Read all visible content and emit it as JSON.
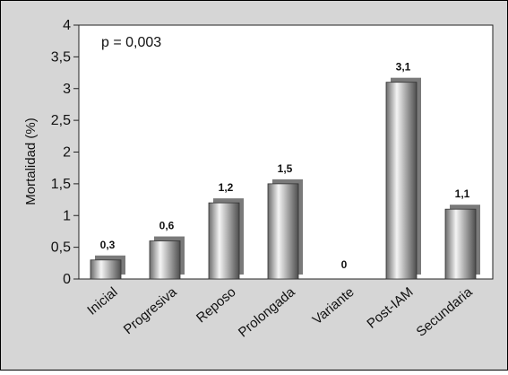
{
  "chart_data": {
    "type": "bar",
    "categories": [
      "Inicial",
      "Progresiva",
      "Reposo",
      "Prolongada",
      "Variante",
      "Post-IAM",
      "Secundaria"
    ],
    "values": [
      0.3,
      0.6,
      1.2,
      1.5,
      0,
      3.1,
      1.1
    ],
    "value_labels": [
      "0,3",
      "0,6",
      "1,2",
      "1,5",
      "0",
      "3,1",
      "1,1"
    ],
    "ylabel": "Mortalidad (%)",
    "xlabel": "",
    "ylim": [
      0,
      4
    ],
    "yticks": [
      0,
      0.5,
      1,
      1.5,
      2,
      2.5,
      3,
      3.5,
      4
    ],
    "ytick_labels": [
      "0",
      "0,5",
      "1",
      "1,5",
      "2",
      "2,5",
      "3",
      "3,5",
      "4"
    ],
    "annotation": "p = 0,003",
    "grid": false,
    "legend": "none",
    "colors": {
      "frame_bg": "#d6d6d6",
      "plot_bg": "#ffffff",
      "bar_shadow": "#7a7a7a",
      "bar_light": "#f2f2f2",
      "bar_dark": "#5a5a5a",
      "axis": "#222222"
    }
  }
}
